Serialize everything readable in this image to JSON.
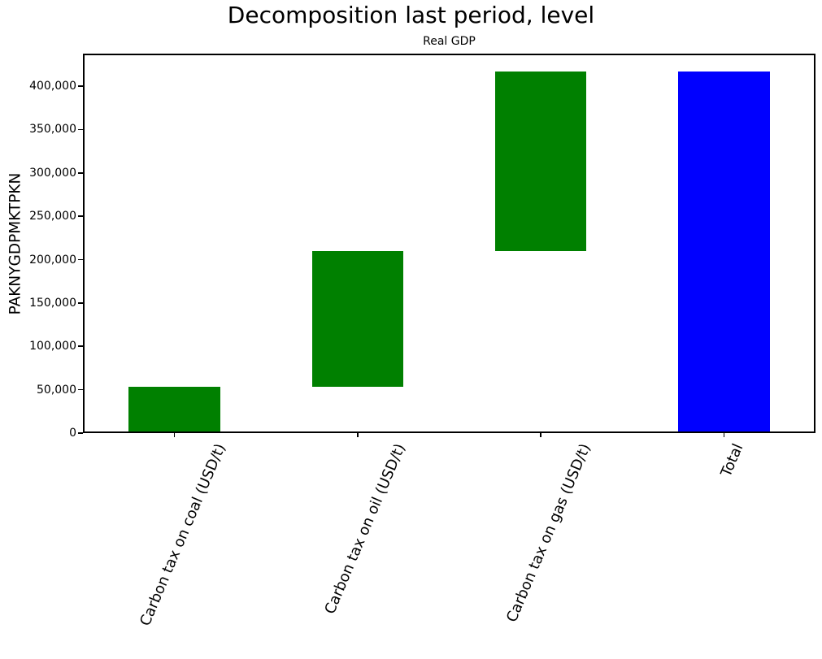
{
  "chart_data": {
    "type": "bar",
    "variant": "waterfall-decomposition",
    "title": "Decomposition last period, level",
    "axes_title": "Real GDP",
    "ylabel": "PAKNYGDPMKTPKN",
    "xlabel": "",
    "categories": [
      "Carbon tax on coal (USD/t)",
      "Carbon tax on oil (USD/t)",
      "Carbon tax on gas (USD/t)",
      "Total"
    ],
    "bars": [
      {
        "category": "Carbon tax on coal (USD/t)",
        "segment_start": 0,
        "segment_end": 53500,
        "contribution": 53500,
        "color": "#008000"
      },
      {
        "category": "Carbon tax on oil (USD/t)",
        "segment_start": 53500,
        "segment_end": 209500,
        "contribution": 156000,
        "color": "#008000"
      },
      {
        "category": "Carbon tax on gas (USD/t)",
        "segment_start": 209500,
        "segment_end": 417000,
        "contribution": 207500,
        "color": "#008000"
      },
      {
        "category": "Total",
        "segment_start": 0,
        "segment_end": 417000,
        "contribution": 417000,
        "color": "#0000ff"
      }
    ],
    "yticks": [
      {
        "value": 0,
        "label": "0"
      },
      {
        "value": 50000,
        "label": "50,000"
      },
      {
        "value": 100000,
        "label": "100,000"
      },
      {
        "value": 150000,
        "label": "150,000"
      },
      {
        "value": 200000,
        "label": "200,000"
      },
      {
        "value": 250000,
        "label": "250,000"
      },
      {
        "value": 300000,
        "label": "300,000"
      },
      {
        "value": 350000,
        "label": "350,000"
      },
      {
        "value": 400000,
        "label": "400,000"
      }
    ],
    "ylim": [
      0,
      437500
    ],
    "grid": false,
    "legend": null,
    "colors": {
      "contribution_bar": "#008000",
      "total_bar": "#0000ff",
      "text": "#000000",
      "background": "#ffffff"
    }
  }
}
